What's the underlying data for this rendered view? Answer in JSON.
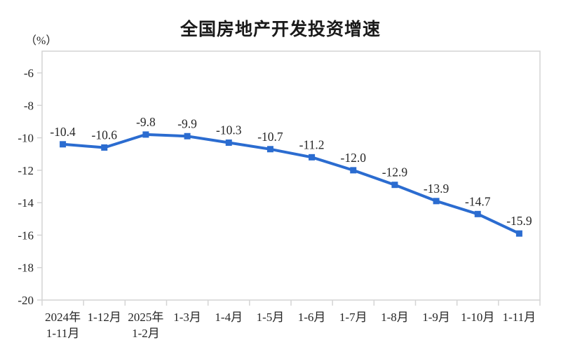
{
  "chart_data": {
    "type": "line",
    "title": "全国房地产开发投资增速",
    "unit_label": "（%）",
    "categories": [
      [
        "2024年",
        "1-11月"
      ],
      [
        "1-12月"
      ],
      [
        "2025年",
        "1-2月"
      ],
      [
        "1-3月"
      ],
      [
        "1-4月"
      ],
      [
        "1-5月"
      ],
      [
        "1-6月"
      ],
      [
        "1-7月"
      ],
      [
        "1-8月"
      ],
      [
        "1-9月"
      ],
      [
        "1-10月"
      ],
      [
        "1-11月"
      ]
    ],
    "values": [
      -10.4,
      -10.6,
      -9.8,
      -9.9,
      -10.3,
      -10.7,
      -11.2,
      -12.0,
      -12.9,
      -13.9,
      -14.7,
      -15.9
    ],
    "data_labels": [
      "-10.4",
      "-10.6",
      "-9.8",
      "-9.9",
      "-10.3",
      "-10.7",
      "-11.2",
      "-12.0",
      "-12.9",
      "-13.9",
      "-14.7",
      "-15.9"
    ],
    "y_ticks": [
      -6,
      -8,
      -10,
      -12,
      -14,
      -16,
      -18,
      -20
    ],
    "ylim": [
      -20,
      -4.7
    ],
    "xlabel": "",
    "ylabel": "（%）",
    "grid": false,
    "legend": "none",
    "marker": "square",
    "line_color": "#2B6CD0",
    "axis_color": "#D4D4D4",
    "text_color": "#262626"
  }
}
